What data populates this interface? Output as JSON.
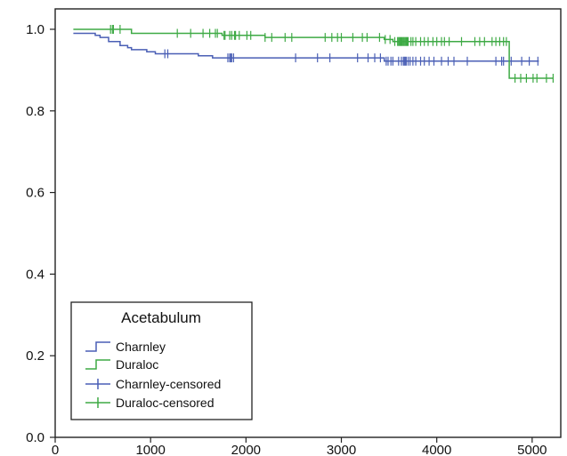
{
  "chart_data": {
    "type": "line",
    "subtype": "kaplan-meier-survival",
    "title": "",
    "xlabel": "",
    "ylabel": "",
    "xlim": [
      0,
      5300
    ],
    "ylim": [
      0.0,
      1.05
    ],
    "x_ticks": [
      0,
      1000,
      2000,
      3000,
      4000,
      5000
    ],
    "x_tick_labels": [
      "0",
      "1000",
      "2000",
      "3000",
      "4000",
      "5000"
    ],
    "y_ticks": [
      0.0,
      0.2,
      0.4,
      0.6,
      0.8,
      1.0
    ],
    "y_tick_labels": [
      "0.0",
      "0.2",
      "0.4",
      "0.6",
      "0.8",
      "1.0"
    ],
    "grid": false,
    "legend": {
      "title": "Acetabulum",
      "placement": "bottom-left",
      "entries": [
        "Charnley",
        "Duraloc",
        "Charnley-censored",
        "Duraloc-censored"
      ]
    },
    "series": [
      {
        "name": "Charnley",
        "color": "#4a5fb5",
        "step_points": [
          [
            190,
            0.99
          ],
          [
            420,
            0.985
          ],
          [
            470,
            0.98
          ],
          [
            560,
            0.97
          ],
          [
            680,
            0.96
          ],
          [
            760,
            0.955
          ],
          [
            800,
            0.95
          ],
          [
            960,
            0.945
          ],
          [
            1050,
            0.94
          ],
          [
            1500,
            0.935
          ],
          [
            1650,
            0.93
          ],
          [
            3450,
            0.922
          ],
          [
            5070,
            0.922
          ]
        ],
        "censored_x": [
          1150,
          1180,
          1810,
          1830,
          1840,
          1850,
          1870,
          2520,
          2750,
          2880,
          3170,
          3280,
          3350,
          3410,
          3470,
          3490,
          3520,
          3540,
          3600,
          3630,
          3650,
          3660,
          3670,
          3680,
          3700,
          3720,
          3750,
          3780,
          3830,
          3870,
          3920,
          3970,
          4050,
          4120,
          4180,
          4320,
          4620,
          4680,
          4700,
          4780,
          4890,
          4970,
          5060
        ]
      },
      {
        "name": "Duraloc",
        "color": "#3eaa45",
        "step_points": [
          [
            190,
            1.0
          ],
          [
            800,
            0.99
          ],
          [
            1750,
            0.985
          ],
          [
            2200,
            0.98
          ],
          [
            3450,
            0.975
          ],
          [
            3540,
            0.97
          ],
          [
            4760,
            0.88
          ],
          [
            5220,
            0.88
          ]
        ],
        "censored_x": [
          580,
          600,
          610,
          680,
          1280,
          1420,
          1550,
          1620,
          1680,
          1700,
          1770,
          1780,
          1830,
          1850,
          1880,
          1890,
          1930,
          2010,
          2050,
          2200,
          2270,
          2410,
          2480,
          2830,
          2900,
          2960,
          3000,
          3120,
          3220,
          3270,
          3400,
          3460,
          3510,
          3560,
          3590,
          3600,
          3610,
          3620,
          3630,
          3640,
          3650,
          3660,
          3670,
          3680,
          3690,
          3700,
          3730,
          3750,
          3780,
          3830,
          3870,
          3910,
          3960,
          4000,
          4050,
          4080,
          4130,
          4260,
          4400,
          4450,
          4500,
          4580,
          4620,
          4660,
          4700,
          4730,
          4820,
          4880,
          4940,
          5010,
          5050,
          5150,
          5220
        ]
      }
    ]
  }
}
